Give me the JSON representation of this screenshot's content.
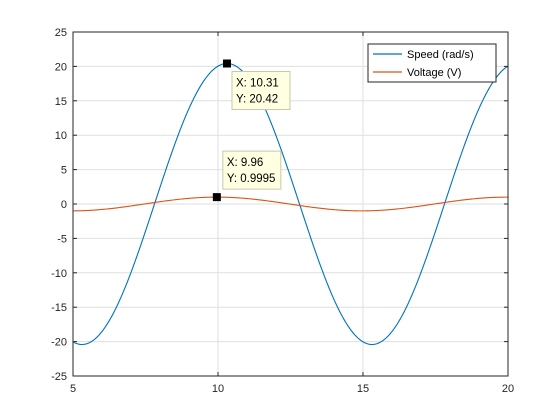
{
  "chart_data": {
    "type": "line",
    "xlim": [
      5,
      20
    ],
    "ylim": [
      -25,
      25
    ],
    "xticks": [
      "5",
      "10",
      "15",
      "20"
    ],
    "yticks": [
      "25",
      "20",
      "15",
      "10",
      "5",
      "0",
      "-5",
      "-10",
      "-15",
      "-20",
      "-25"
    ],
    "grid": true,
    "legend_position": "top-right",
    "series": [
      {
        "name": "Speed (rad/s)",
        "color": "#0072BD",
        "function": "sine",
        "amplitude": 20.42,
        "peak_x": 10.31,
        "period": 10.0
      },
      {
        "name": "Voltage (V)",
        "color": "#D95319",
        "function": "sine",
        "amplitude": 1.0,
        "peak_x": 9.96,
        "period": 10.0
      }
    ],
    "datatips": [
      {
        "series": "Speed (rad/s)",
        "x": 10.31,
        "y": 20.42,
        "x_text": "X: 10.31",
        "y_text": "Y: 20.42"
      },
      {
        "series": "Voltage (V)",
        "x": 9.96,
        "y": 0.9995,
        "x_text": "X: 9.96",
        "y_text": "Y: 0.9995"
      }
    ]
  }
}
